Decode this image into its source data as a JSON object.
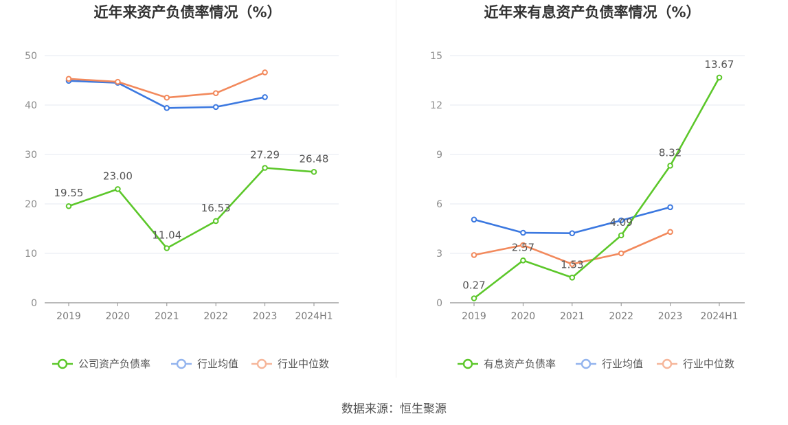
{
  "source_label": "数据来源：恒生聚源",
  "chart_data": [
    {
      "type": "line",
      "title": "近年来资产负债率情况（%）",
      "categories": [
        "2019",
        "2020",
        "2021",
        "2022",
        "2023",
        "2024H1"
      ],
      "ylim": [
        0,
        50
      ],
      "yticks": [
        0,
        10,
        20,
        30,
        40,
        50
      ],
      "grid": true,
      "legend_position": "bottom",
      "series": [
        {
          "name": "公司资产负债率",
          "color": "#5cc72a",
          "values": [
            19.55,
            23.0,
            11.04,
            16.53,
            27.29,
            26.48
          ],
          "labels": [
            "19.55",
            "23.00",
            "11.04",
            "16.53",
            "27.29",
            "26.48"
          ]
        },
        {
          "name": "行业均值",
          "color": "#3b78e0",
          "values": [
            44.9,
            44.5,
            39.4,
            39.6,
            41.6,
            null
          ]
        },
        {
          "name": "行业中位数",
          "color": "#f2895c",
          "values": [
            45.3,
            44.7,
            41.5,
            42.4,
            46.6,
            null
          ]
        }
      ]
    },
    {
      "type": "line",
      "title": "近年来有息资产负债率情况（%）",
      "categories": [
        "2019",
        "2020",
        "2021",
        "2022",
        "2023",
        "2024H1"
      ],
      "ylim": [
        0,
        15
      ],
      "yticks": [
        0,
        3,
        6,
        9,
        12,
        15
      ],
      "grid": true,
      "legend_position": "bottom",
      "series": [
        {
          "name": "有息资产负债率",
          "color": "#5cc72a",
          "values": [
            0.27,
            2.57,
            1.53,
            4.09,
            8.32,
            13.67
          ],
          "labels": [
            "0.27",
            "2.57",
            "1.53",
            "4.09",
            "8.32",
            "13.67"
          ]
        },
        {
          "name": "行业均值",
          "color": "#3b78e0",
          "values": [
            5.05,
            4.25,
            4.22,
            5.0,
            5.8,
            null
          ]
        },
        {
          "name": "行业中位数",
          "color": "#f2895c",
          "values": [
            2.9,
            3.5,
            2.35,
            3.0,
            4.3,
            null
          ]
        }
      ]
    }
  ]
}
